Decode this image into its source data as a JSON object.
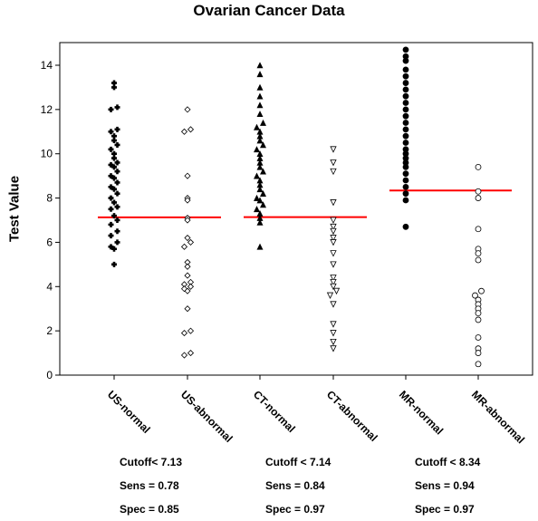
{
  "chart_data": {
    "type": "scatter",
    "title": "Ovarian Cancer Data",
    "ylabel": "Test Value",
    "xlabel": "",
    "ylim": [
      0,
      15
    ],
    "yticks": [
      0,
      2,
      4,
      6,
      8,
      10,
      12,
      14
    ],
    "categories": [
      "US-normal",
      "US-abnormal",
      "CT-normal",
      "CT-abnormal",
      "MR-normal",
      "MR-abnormal"
    ],
    "series": [
      {
        "category": "US-normal",
        "marker": "cross-filled",
        "values": [
          5.0,
          5.7,
          5.8,
          6.0,
          6.3,
          6.5,
          6.8,
          7.0,
          7.2,
          7.5,
          7.6,
          7.8,
          8.0,
          8.2,
          8.4,
          8.5,
          8.7,
          8.9,
          9.0,
          9.2,
          9.4,
          9.5,
          9.6,
          9.8,
          10.0,
          10.2,
          10.4,
          10.6,
          10.8,
          11.0,
          11.1,
          12.0,
          12.1,
          13.0,
          13.2
        ]
      },
      {
        "category": "US-abnormal",
        "marker": "diamond-open",
        "values": [
          0.9,
          1.0,
          1.9,
          2.0,
          3.0,
          3.8,
          3.9,
          4.0,
          4.1,
          4.2,
          4.5,
          4.9,
          5.1,
          5.8,
          6.0,
          6.2,
          7.0,
          7.1,
          7.9,
          8.0,
          9.0,
          11.0,
          11.1,
          12.0
        ]
      },
      {
        "category": "CT-normal",
        "marker": "triangle-up-filled",
        "values": [
          5.8,
          6.9,
          7.1,
          7.3,
          7.5,
          7.7,
          7.9,
          8.0,
          8.2,
          8.4,
          8.6,
          8.8,
          9.0,
          9.2,
          9.4,
          9.6,
          9.8,
          10.0,
          10.2,
          10.4,
          10.6,
          10.8,
          11.0,
          11.2,
          11.4,
          11.8,
          12.2,
          12.6,
          13.0,
          13.6,
          14.0
        ]
      },
      {
        "category": "CT-abnormal",
        "marker": "triangle-down-open",
        "values": [
          1.2,
          1.5,
          1.9,
          2.3,
          3.2,
          3.6,
          3.8,
          4.0,
          4.2,
          4.4,
          5.0,
          5.5,
          6.0,
          6.2,
          6.5,
          6.7,
          7.0,
          7.8,
          9.2,
          9.6,
          10.2
        ]
      },
      {
        "category": "MR-normal",
        "marker": "circle-filled",
        "values": [
          6.7,
          7.9,
          8.2,
          8.5,
          8.8,
          9.1,
          9.4,
          9.6,
          9.8,
          10.0,
          10.2,
          10.5,
          10.8,
          11.1,
          11.4,
          11.7,
          12.0,
          12.3,
          12.6,
          12.9,
          13.2,
          13.5,
          13.8,
          14.2,
          14.4,
          14.7
        ]
      },
      {
        "category": "MR-abnormal",
        "marker": "circle-open",
        "values": [
          0.5,
          1.0,
          1.2,
          1.7,
          2.5,
          2.8,
          3.0,
          3.2,
          3.4,
          3.6,
          3.8,
          5.2,
          5.5,
          5.7,
          6.6,
          8.0,
          8.3,
          9.4
        ]
      }
    ],
    "cutoffs": [
      {
        "between": [
          "US-normal",
          "US-abnormal"
        ],
        "value": 7.13,
        "color": "#ff0000"
      },
      {
        "between": [
          "CT-normal",
          "CT-abnormal"
        ],
        "value": 7.14,
        "color": "#ff0000"
      },
      {
        "between": [
          "MR-normal",
          "MR-abnormal"
        ],
        "value": 8.34,
        "color": "#ff0000"
      }
    ],
    "grid": false,
    "legend": "none"
  },
  "stats": [
    {
      "cutoff": "Cutoff< 7.13",
      "sens": "Sens = 0.78",
      "spec": "Spec = 0.85"
    },
    {
      "cutoff": "Cutoff < 7.14",
      "sens": "Sens = 0.84",
      "spec": "Spec = 0.97"
    },
    {
      "cutoff": "Cutoff < 8.34",
      "sens": "Sens = 0.94",
      "spec": "Spec = 0.97"
    }
  ],
  "colors": {
    "marker": "#000000",
    "cutoff_line": "#ff0000",
    "axis": "#000000"
  }
}
